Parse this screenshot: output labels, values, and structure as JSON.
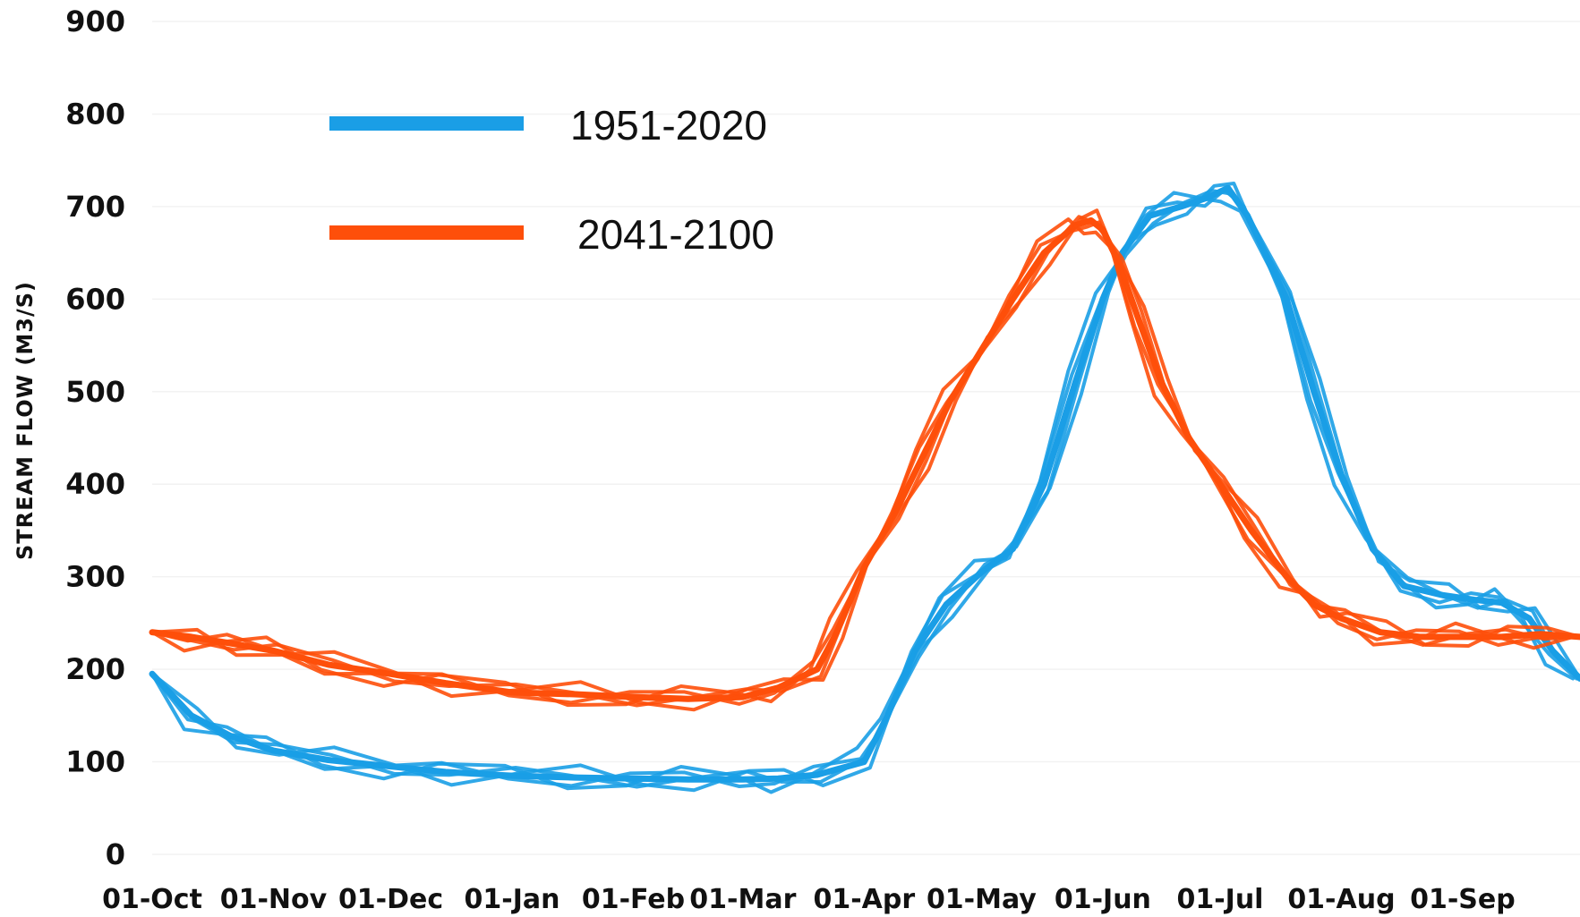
{
  "chart_data": {
    "type": "line",
    "title": "",
    "xlabel": "",
    "ylabel": "STREAM FLOW (M3/S)",
    "ylim": [
      0,
      900
    ],
    "yticks": [
      0,
      100,
      200,
      300,
      400,
      500,
      600,
      700,
      800,
      900
    ],
    "xlim": [
      0,
      365
    ],
    "x_tick_labels": [
      "01-Oct",
      "01-Nov",
      "01-Dec",
      "01-Jan",
      "01-Feb",
      "01-Mar",
      "01-Apr",
      "01-May",
      "01-Jun",
      "01-Jul",
      "01-Aug",
      "01-Sep"
    ],
    "x_tick_days": [
      0,
      31,
      61,
      92,
      123,
      151,
      182,
      212,
      243,
      273,
      304,
      335
    ],
    "grid": true,
    "legend_position": "top-left",
    "series": [
      {
        "name": "1951-2020",
        "color": "#1a9ee6",
        "x": [
          0,
          10,
          20,
          31,
          45,
          61,
          75,
          92,
          108,
          123,
          137,
          151,
          160,
          170,
          182,
          188,
          195,
          203,
          212,
          220,
          228,
          236,
          243,
          248,
          255,
          263,
          270,
          275,
          280,
          290,
          297,
          304,
          312,
          320,
          330,
          338,
          345,
          352,
          358,
          365
        ],
        "values": [
          195,
          150,
          128,
          112,
          102,
          95,
          89,
          85,
          83,
          82,
          81,
          81,
          82,
          86,
          100,
          150,
          220,
          270,
          305,
          330,
          400,
          510,
          600,
          650,
          690,
          700,
          710,
          720,
          690,
          600,
          500,
          410,
          330,
          290,
          280,
          275,
          272,
          255,
          220,
          190
        ]
      },
      {
        "name": "2041-2100",
        "color": "#fe4f0a",
        "x": [
          0,
          10,
          20,
          31,
          45,
          61,
          75,
          92,
          108,
          123,
          137,
          151,
          160,
          170,
          175,
          182,
          190,
          197,
          204,
          212,
          220,
          228,
          236,
          240,
          243,
          247,
          252,
          258,
          265,
          273,
          281,
          290,
          297,
          304,
          314,
          324,
          335,
          345,
          355,
          365
        ],
        "values": [
          240,
          235,
          228,
          220,
          205,
          195,
          185,
          175,
          173,
          170,
          168,
          170,
          180,
          200,
          240,
          310,
          370,
          430,
          490,
          545,
          600,
          650,
          680,
          685,
          675,
          640,
          580,
          510,
          450,
          400,
          350,
          300,
          270,
          255,
          240,
          235,
          235,
          235,
          238,
          235
        ]
      }
    ]
  }
}
